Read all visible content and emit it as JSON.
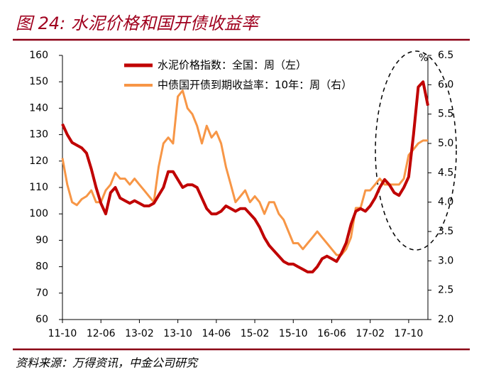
{
  "chart_data": {
    "type": "line",
    "title": "图 24: 水泥价格和国开债收益率",
    "source": "资料来源：万得资讯，中金公司研究",
    "y2_unit": "%",
    "categories": [
      "11-10",
      null,
      null,
      null,
      null,
      null,
      null,
      null,
      "12-06",
      null,
      null,
      null,
      null,
      null,
      null,
      null,
      "13-02",
      null,
      null,
      null,
      null,
      null,
      null,
      null,
      "13-10",
      null,
      null,
      null,
      null,
      null,
      null,
      null,
      "14-06",
      null,
      null,
      null,
      null,
      null,
      null,
      null,
      "15-02",
      null,
      null,
      null,
      null,
      null,
      null,
      null,
      "15-10",
      null,
      null,
      null,
      null,
      null,
      null,
      null,
      "16-06",
      null,
      null,
      null,
      null,
      null,
      null,
      null,
      "17-02",
      null,
      null,
      null,
      null,
      null,
      null,
      null,
      "17-10",
      null,
      null,
      null,
      null
    ],
    "series": [
      {
        "name": "水泥价格指数：全国：周（左）",
        "color": "#c00000",
        "width": 4,
        "values": [
          134,
          130,
          127,
          126,
          125,
          123,
          117,
          110,
          104,
          100,
          108,
          110,
          106,
          105,
          104,
          105,
          104,
          103,
          103,
          104,
          107,
          110,
          116,
          116,
          113,
          110,
          111,
          111,
          110,
          106,
          102,
          100,
          100,
          101,
          103,
          102,
          101,
          102,
          102,
          100,
          98,
          95,
          91,
          88,
          86,
          84,
          82,
          81,
          81,
          80,
          79,
          78,
          78,
          80,
          83,
          84,
          83,
          82,
          85,
          89,
          96,
          101,
          102,
          101,
          103,
          106,
          110,
          113,
          111,
          108,
          107,
          110,
          114,
          130,
          148,
          150,
          141
        ]
      },
      {
        "name": "中债国开债到期收益率：10年：周（右）",
        "color": "#f79646",
        "width": 3,
        "axis": "y2",
        "values": [
          4.75,
          4.3,
          4.0,
          3.95,
          4.05,
          4.1,
          4.2,
          4.0,
          4.0,
          4.2,
          4.3,
          4.5,
          4.4,
          4.4,
          4.3,
          4.4,
          4.3,
          4.2,
          4.1,
          4.0,
          4.6,
          5.0,
          5.1,
          5.0,
          5.8,
          5.9,
          5.6,
          5.5,
          5.3,
          5.0,
          5.3,
          5.1,
          5.2,
          5.0,
          4.6,
          4.3,
          4.0,
          4.1,
          4.2,
          4.0,
          4.1,
          4.0,
          3.8,
          4.0,
          4.0,
          3.8,
          3.7,
          3.5,
          3.3,
          3.3,
          3.2,
          3.3,
          3.4,
          3.5,
          3.4,
          3.3,
          3.2,
          3.1,
          3.1,
          3.2,
          3.4,
          3.9,
          3.9,
          4.2,
          4.2,
          4.3,
          4.4,
          4.3,
          4.3,
          4.3,
          4.3,
          4.4,
          4.8,
          4.9,
          5.0,
          5.05,
          5.05
        ]
      }
    ],
    "ylim": [
      60,
      160
    ],
    "yticks": [
      60,
      70,
      80,
      90,
      100,
      110,
      120,
      130,
      140,
      150,
      160
    ],
    "y2lim": [
      2.0,
      6.5
    ],
    "y2ticks": [
      {
        "value": 2,
        "label": "2.0"
      },
      2.5,
      {
        "value": 3,
        "label": "3.0"
      },
      3.5,
      {
        "value": 4,
        "label": "4.0"
      },
      4.5,
      {
        "value": 5,
        "label": "5.0"
      },
      5.5,
      {
        "value": 6,
        "label": "6.0"
      },
      6.5
    ],
    "legend": "top-center",
    "grid": false
  }
}
